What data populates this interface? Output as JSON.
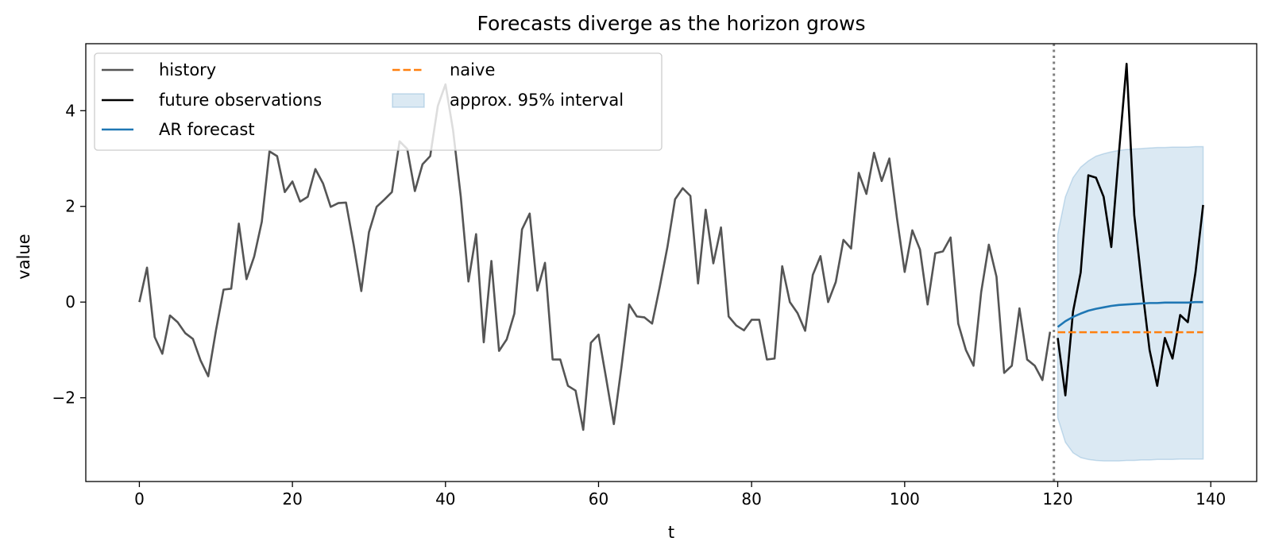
{
  "chart_data": {
    "type": "line",
    "title": "Forecasts diverge as the horizon grows",
    "xlabel": "t",
    "ylabel": "value",
    "xlim": [
      -7,
      146
    ],
    "ylim": [
      -3.75,
      5.4
    ],
    "xticks": [
      0,
      20,
      40,
      60,
      80,
      100,
      120,
      140
    ],
    "yticks": [
      -2,
      0,
      2,
      4
    ],
    "ytick_labels": [
      "−2",
      "0",
      "2",
      "4"
    ],
    "grid": false,
    "legend_placement": "top-left",
    "forecast_origin": 119.5,
    "series": [
      {
        "name": "history",
        "color": "#555555",
        "x_start": 0,
        "values": [
          0.0,
          0.72,
          -0.73,
          -1.08,
          -0.28,
          -0.42,
          -0.65,
          -0.77,
          -1.22,
          -1.55,
          -0.6,
          0.26,
          0.28,
          1.64,
          0.48,
          0.95,
          1.68,
          3.15,
          3.05,
          2.3,
          2.52,
          2.1,
          2.2,
          2.78,
          2.48,
          1.99,
          2.07,
          2.08,
          1.2,
          0.23,
          1.46,
          1.99,
          2.14,
          2.3,
          3.36,
          3.2,
          2.32,
          2.88,
          3.05,
          4.1,
          4.55,
          3.58,
          2.2,
          0.43,
          1.42,
          -0.84,
          0.86,
          -1.02,
          -0.78,
          -0.24,
          1.52,
          1.85,
          0.24,
          0.82,
          -1.2,
          -1.2,
          -1.75,
          -1.85,
          -2.67,
          -0.85,
          -0.68,
          -1.6,
          -2.55,
          -1.35,
          -0.05,
          -0.3,
          -0.32,
          -0.45,
          0.32,
          1.15,
          2.15,
          2.38,
          2.22,
          0.39,
          1.93,
          0.81,
          1.56,
          -0.3,
          -0.49,
          -0.59,
          -0.37,
          -0.37,
          -1.2,
          -1.18,
          0.75,
          0.0,
          -0.23,
          -0.6,
          0.57,
          0.96,
          0.0,
          0.42,
          1.3,
          1.12,
          2.7,
          2.26,
          3.12,
          2.53,
          3.0,
          1.75,
          0.63,
          1.5,
          1.1,
          -0.05,
          1.02,
          1.06,
          1.35,
          -0.45,
          -1.0,
          -1.33,
          0.21,
          1.2,
          0.53,
          -1.48,
          -1.33,
          -0.13,
          -1.2,
          -1.33,
          -1.63,
          -0.62
        ]
      },
      {
        "name": "future observations",
        "color": "#000000",
        "x_start": 120,
        "values": [
          -0.75,
          -1.95,
          -0.2,
          0.62,
          2.65,
          2.6,
          2.2,
          1.15,
          3.12,
          4.98,
          1.82,
          0.35,
          -1.0,
          -1.75,
          -0.75,
          -1.18,
          -0.27,
          -0.42,
          0.62,
          2.03
        ]
      },
      {
        "name": "AR forecast",
        "color": "#1f77b4",
        "x_start": 120,
        "values": [
          -0.52,
          -0.4,
          -0.31,
          -0.24,
          -0.18,
          -0.14,
          -0.11,
          -0.08,
          -0.06,
          -0.05,
          -0.04,
          -0.03,
          -0.02,
          -0.02,
          -0.01,
          -0.01,
          -0.01,
          -0.01,
          0.0,
          0.0
        ]
      },
      {
        "name": "naive",
        "color": "#ff7f0e",
        "dashed": true,
        "x_start": 120,
        "values": [
          -0.63,
          -0.63,
          -0.63,
          -0.63,
          -0.63,
          -0.63,
          -0.63,
          -0.63,
          -0.63,
          -0.63,
          -0.63,
          -0.63,
          -0.63,
          -0.63,
          -0.63,
          -0.63,
          -0.63,
          -0.63,
          -0.63,
          -0.63
        ]
      }
    ],
    "interval": {
      "name": "approx. 95% interval",
      "color": "#1f77b4",
      "x_start": 120,
      "lower": [
        -2.42,
        -2.93,
        -3.15,
        -3.25,
        -3.29,
        -3.31,
        -3.32,
        -3.32,
        -3.32,
        -3.31,
        -3.31,
        -3.3,
        -3.3,
        -3.29,
        -3.29,
        -3.29,
        -3.28,
        -3.28,
        -3.28,
        -3.28
      ],
      "upper": [
        1.42,
        2.2,
        2.6,
        2.82,
        2.95,
        3.05,
        3.1,
        3.14,
        3.17,
        3.19,
        3.2,
        3.21,
        3.22,
        3.23,
        3.23,
        3.24,
        3.24,
        3.24,
        3.25,
        3.25
      ]
    },
    "legend": [
      {
        "label": "history",
        "kind": "line",
        "color": "#555555"
      },
      {
        "label": "future observations",
        "kind": "line",
        "color": "#000000"
      },
      {
        "label": "AR forecast",
        "kind": "line",
        "color": "#1f77b4"
      },
      {
        "label": "naive",
        "kind": "dashed",
        "color": "#ff7f0e"
      },
      {
        "label": "approx. 95% interval",
        "kind": "patch",
        "color": "#1f77b4"
      }
    ]
  }
}
